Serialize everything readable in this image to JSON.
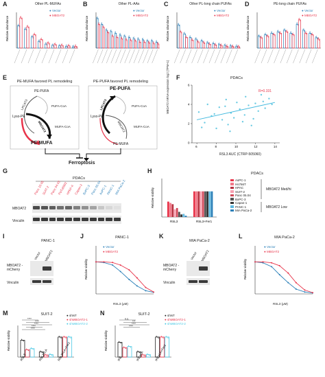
{
  "colors": {
    "vector": "#2a7fb8",
    "mboat2": "#e8344a",
    "dark": "#1b1b1b",
    "cyan": "#48c8e4",
    "pink": "#f7a1b1",
    "gray": "#9a9a9a"
  },
  "panel_labels": [
    "A",
    "B",
    "C",
    "D",
    "E",
    "F",
    "G",
    "H",
    "I",
    "J",
    "K",
    "L",
    "M",
    "N"
  ],
  "legend_vm": {
    "vector": "Vector",
    "mboat2": "MBOAT2"
  },
  "ylabel_ra": "Relative abundance",
  "ylabel_rv": "Relative viability",
  "A": {
    "title": "Other PL-MUFAs"
  },
  "B": {
    "title": "Other PL-AAs"
  },
  "C": {
    "title": "Other PL-long chain PUFAs"
  },
  "D": {
    "title": "PE-long chain PUFAs"
  },
  "E": {
    "left_title": "PE-MUFA favored PL remodeling",
    "right_title": "PE-PUFA favored PL remodeling",
    "left": {
      "top": "PE-PUFA",
      "lyso": "Lyso-PE",
      "bottom": "PE-MUFA",
      "enzyme1": "LPCAT3",
      "enzyme2": "MBOAT2",
      "cofactor1": "PUFA-CoA",
      "cofactor2": "MUFA-CoA"
    },
    "right": {
      "top": "PE-PUFA",
      "lyso": "Lyso-PE",
      "bottom": "PE-MUFA",
      "enzyme1": "LPCAT3",
      "enzyme2": "MBOAT2",
      "cofactor1": "PUFA-CoA",
      "cofactor2": "MUFA-CoA"
    },
    "outcome": "Ferroptosis"
  },
  "F": {
    "title": "PDACs",
    "stat": "R=0.331",
    "ylabel": "MBOAT2 mRNA expression log2 (TPM+1)",
    "xlabel": "RSL3 AUC (CTRP-505060)",
    "xticks": [
      "6",
      "8",
      "10",
      "12",
      "14"
    ],
    "yticks": [
      "0",
      "2",
      "4",
      "6"
    ]
  },
  "G": {
    "title": "PDACs",
    "lanes": [
      "Panc 10.05",
      "SUIT-2",
      "Panc 04.03",
      "PaTu8902",
      "HPAF-II",
      "Capan-2",
      "BxPC-3",
      "Panc 05.04",
      "AsPC-1",
      "PANC-1",
      "MIA PaCa-2"
    ],
    "rows": [
      "MBOAT2",
      "Vinculin"
    ]
  },
  "H": {
    "title": "PDACs",
    "legend": [
      "AsPC-1",
      "Hs766T",
      "HPAC",
      "SUIT-2",
      "Panc 05.04",
      "BxPC-3",
      "Capan-1",
      "PANC-1",
      "MIA PaCa-2"
    ],
    "group_hi": "MBOAT2 Med/hi",
    "group_lo": "MBOAT2 Low",
    "xcats": [
      "RSL3",
      "RSL3+Fer1"
    ]
  },
  "I": {
    "title": "PANC-1",
    "lanes": [
      "Vector",
      "MBOAT2"
    ],
    "rows": [
      "MBOAT2 -mCherry",
      "Vinculin"
    ]
  },
  "J": {
    "title": "PANC-1",
    "xlabel": "RSL3 (μM)"
  },
  "K": {
    "title": "MIA PaCa-2",
    "lanes": [
      "Vector",
      "MBOAT2"
    ],
    "rows": [
      "MBOAT2 -mCherry",
      "Vinculin"
    ]
  },
  "L": {
    "title": "MIA PaCa-2",
    "xlabel": "RSL3 (μM)"
  },
  "M": {
    "title": "SUIT-2",
    "legend": [
      "shNT",
      "shMBOAT2-1",
      "shMBOAT2-2"
    ],
    "sig": [
      "****",
      "****",
      "****",
      "****",
      "****"
    ],
    "xcats": [
      "RSL3",
      "RSL3+LA",
      "RSL3+LA+Fer1"
    ]
  },
  "N": {
    "title": "SUIT-2",
    "legend": [
      "shNT",
      "shMBOAT2-1",
      "shMBOAT2-2"
    ],
    "sig": [
      "n.s.",
      "***",
      "****",
      "****"
    ],
    "xcats": [
      "IKE",
      "IKE+LA",
      "IKE+LA+Fer1"
    ]
  },
  "chart_data": [
    {
      "panel": "A",
      "type": "bar",
      "series": [
        {
          "name": "Vector",
          "values": [
            1.0,
            0.85,
            0.5,
            0.3,
            0.18,
            0.12,
            0.1,
            0.08,
            0.06
          ]
        },
        {
          "name": "MBOAT2",
          "values": [
            1.35,
            0.95,
            0.6,
            0.38,
            0.22,
            0.16,
            0.12,
            0.1,
            0.08
          ]
        }
      ],
      "ylim": [
        0,
        1.6
      ]
    },
    {
      "panel": "B",
      "type": "bar",
      "series": [
        {
          "name": "Vector",
          "values": [
            0.5,
            0.4,
            0.3,
            0.28,
            0.25,
            0.22,
            0.2,
            0.18,
            0.16,
            0.15,
            0.14,
            0.12,
            0.12,
            0.1
          ]
        },
        {
          "name": "MBOAT2",
          "values": [
            0.4,
            0.35,
            0.26,
            0.2,
            0.18,
            0.16,
            0.14,
            0.13,
            0.12,
            0.1,
            0.1,
            0.09,
            0.08,
            0.07
          ]
        }
      ],
      "ylim": [
        0,
        0.6
      ]
    },
    {
      "panel": "C",
      "type": "bar",
      "series": [
        {
          "name": "Vector",
          "values": [
            1.3,
            0.8,
            0.6,
            0.5,
            0.4,
            0.3,
            0.25,
            0.2,
            0.15,
            0.12,
            0.1
          ]
        },
        {
          "name": "MBOAT2",
          "values": [
            0.9,
            0.6,
            0.45,
            0.35,
            0.3,
            0.22,
            0.18,
            0.15,
            0.1,
            0.09,
            0.08
          ]
        }
      ],
      "ylim": [
        0,
        2.0
      ]
    },
    {
      "panel": "D",
      "type": "bar",
      "series": [
        {
          "name": "Vector",
          "values": [
            0.4,
            0.45,
            0.5,
            0.55,
            0.6,
            0.5,
            0.8,
            0.6,
            0.5,
            0.35
          ]
        },
        {
          "name": "MBOAT2",
          "values": [
            0.35,
            0.4,
            0.45,
            0.5,
            0.55,
            0.45,
            0.95,
            0.5,
            0.45,
            0.3
          ]
        }
      ],
      "ylim": [
        0,
        1.2
      ]
    },
    {
      "panel": "F",
      "type": "scatter",
      "x": [
        6.2,
        6.8,
        7.1,
        7.5,
        8.0,
        8.3,
        8.6,
        9.0,
        9.2,
        9.5,
        9.8,
        10.1,
        10.4,
        10.7,
        11.0,
        11.3,
        11.6,
        12.0,
        12.3,
        12.6,
        13.0,
        13.4,
        7.8,
        9.4,
        10.9,
        12.8,
        8.9,
        11.8,
        6.5,
        13.7
      ],
      "y": [
        3.2,
        2.1,
        4.0,
        2.8,
        1.5,
        3.7,
        2.4,
        4.5,
        1.9,
        3.1,
        2.6,
        4.2,
        3.5,
        2.2,
        4.8,
        3.9,
        1.8,
        4.1,
        3.3,
        5.0,
        3.6,
        4.6,
        3.0,
        1.2,
        2.9,
        4.3,
        3.8,
        2.5,
        1.6,
        4.0
      ],
      "xlim": [
        5.5,
        14.5
      ],
      "ylim": [
        0,
        6
      ]
    },
    {
      "panel": "H",
      "type": "bar",
      "categories": [
        "RSL3",
        "RSL3+Fer1"
      ],
      "series": [
        {
          "name": "AsPC-1",
          "values": [
            0.6,
            1.0
          ]
        },
        {
          "name": "Hs766T",
          "values": [
            0.55,
            1.0
          ]
        },
        {
          "name": "HPAC",
          "values": [
            0.5,
            1.0
          ]
        },
        {
          "name": "SUIT-2",
          "values": [
            0.3,
            1.0
          ]
        },
        {
          "name": "Panc 05.04",
          "values": [
            0.35,
            1.0
          ]
        },
        {
          "name": "BxPC-3",
          "values": [
            0.2,
            1.0
          ]
        },
        {
          "name": "Capan-1",
          "values": [
            0.1,
            1.0
          ]
        },
        {
          "name": "PANC-1",
          "values": [
            0.12,
            1.0
          ]
        },
        {
          "name": "MIA PaCa-2",
          "values": [
            0.05,
            1.0
          ]
        }
      ],
      "ylim": [
        0,
        1.5
      ]
    },
    {
      "panel": "J",
      "type": "line",
      "x": [
        0.001,
        0.003,
        0.01,
        0.03,
        0.1,
        0.3,
        1,
        3
      ],
      "series": [
        {
          "name": "Vector",
          "values": [
            1.0,
            0.98,
            0.9,
            0.7,
            0.45,
            0.25,
            0.1,
            0.05
          ]
        },
        {
          "name": "MBOAT2",
          "values": [
            1.0,
            1.0,
            0.98,
            0.9,
            0.75,
            0.5,
            0.2,
            0.06
          ]
        }
      ],
      "ylim": [
        0,
        1.5
      ]
    },
    {
      "panel": "L",
      "type": "line",
      "x": [
        0.001,
        0.003,
        0.01,
        0.03,
        0.1,
        0.3,
        1,
        3
      ],
      "series": [
        {
          "name": "Vector",
          "values": [
            1.0,
            0.97,
            0.85,
            0.6,
            0.35,
            0.15,
            0.06,
            0.03
          ]
        },
        {
          "name": "MBOAT2",
          "values": [
            1.0,
            1.0,
            0.97,
            0.88,
            0.65,
            0.35,
            0.12,
            0.04
          ]
        }
      ],
      "ylim": [
        0,
        1.5
      ]
    },
    {
      "panel": "M",
      "type": "bar",
      "categories": [
        "RSL3",
        "RSL3+LA",
        "RSL3+LA+Fer1"
      ],
      "series": [
        {
          "name": "shNT",
          "values": [
            0.8,
            0.25,
            0.95
          ]
        },
        {
          "name": "shMBOAT2-1",
          "values": [
            0.35,
            0.1,
            0.95
          ]
        },
        {
          "name": "shMBOAT2-2",
          "values": [
            0.4,
            0.12,
            0.95
          ]
        }
      ],
      "ylim": [
        0,
        1.5
      ]
    },
    {
      "panel": "N",
      "type": "bar",
      "categories": [
        "IKE",
        "IKE+LA",
        "IKE+LA+Fer1"
      ],
      "series": [
        {
          "name": "shNT",
          "values": [
            0.7,
            0.25,
            0.95
          ]
        },
        {
          "name": "shMBOAT2-1",
          "values": [
            0.45,
            0.1,
            0.95
          ]
        },
        {
          "name": "shMBOAT2-2",
          "values": [
            0.5,
            0.12,
            0.95
          ]
        }
      ],
      "ylim": [
        0,
        1.5
      ]
    }
  ]
}
